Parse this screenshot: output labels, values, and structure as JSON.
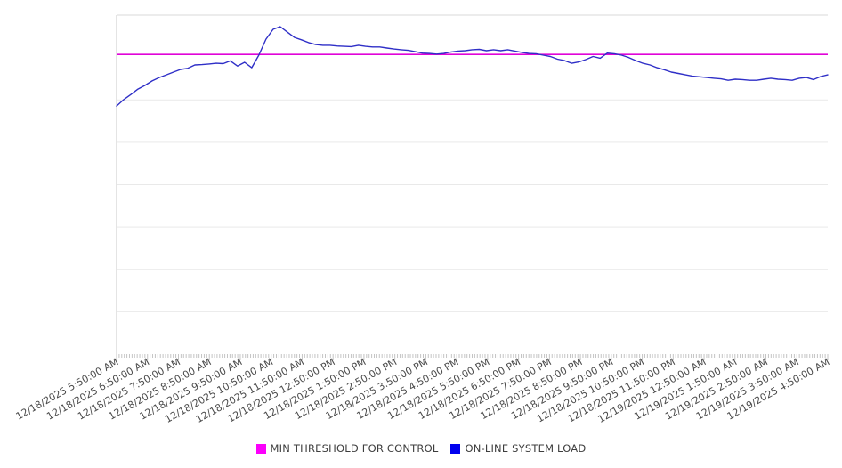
{
  "chart_data": {
    "type": "line",
    "title": "",
    "grid": "horizontal",
    "legend_position": "bottom",
    "y_axis_labels_visible": false,
    "ylim": [
      0,
      100
    ],
    "x_label_rotation_deg": -29,
    "x_labels": [
      "12/18/2025 5:50:00 AM",
      "12/18/2025 6:50:00 AM",
      "12/18/2025 7:50:00 AM",
      "12/18/2025 8:50:00 AM",
      "12/18/2025 9:50:00 AM",
      "12/18/2025 10:50:00 AM",
      "12/18/2025 11:50:00 AM",
      "12/18/2025 12:50:00 PM",
      "12/18/2025 1:50:00 PM",
      "12/18/2025 2:50:00 PM",
      "12/18/2025 3:50:00 PM",
      "12/18/2025 4:50:00 PM",
      "12/18/2025 5:50:00 PM",
      "12/18/2025 6:50:00 PM",
      "12/18/2025 7:50:00 PM",
      "12/18/2025 8:50:00 PM",
      "12/18/2025 9:50:00 PM",
      "12/18/2025 10:50:00 PM",
      "12/18/2025 11:50:00 PM",
      "12/19/2025 12:50:00 AM",
      "12/19/2025 1:50:00 AM",
      "12/19/2025 2:50:00 AM",
      "12/19/2025 3:50:00 AM",
      "12/19/2025 4:50:00 AM"
    ],
    "series": [
      {
        "name": "MIN THRESHOLD FOR CONTROL",
        "type": "threshold",
        "value": 88.4,
        "color": "#e004d8",
        "swatch_color": "#fb00fb"
      },
      {
        "name": "ON-LINE SYSTEM LOAD",
        "type": "line",
        "color": "#2f2fc7",
        "swatch_color": "#0101ef",
        "values": [
          73.2,
          75.1,
          76.6,
          78.2,
          79.3,
          80.6,
          81.6,
          82.4,
          83.2,
          84.0,
          84.3,
          85.3,
          85.4,
          85.6,
          85.8,
          85.7,
          86.5,
          85.0,
          86.1,
          84.5,
          88.2,
          92.9,
          95.8,
          96.6,
          95.0,
          93.4,
          92.7,
          91.9,
          91.3,
          91.1,
          91.1,
          90.9,
          90.8,
          90.7,
          91.1,
          90.8,
          90.6,
          90.6,
          90.3,
          90.0,
          89.8,
          89.6,
          89.2,
          88.8,
          88.7,
          88.5,
          88.7,
          89.1,
          89.4,
          89.5,
          89.8,
          89.9,
          89.5,
          89.8,
          89.5,
          89.8,
          89.4,
          89.0,
          88.7,
          88.6,
          88.2,
          87.8,
          87.0,
          86.6,
          85.8,
          86.2,
          86.9,
          87.8,
          87.3,
          88.8,
          88.6,
          88.2,
          87.5,
          86.6,
          85.8,
          85.3,
          84.5,
          83.9,
          83.2,
          82.8,
          82.4,
          82.0,
          81.8,
          81.6,
          81.4,
          81.2,
          80.8,
          81.1,
          81.0,
          80.8,
          80.8,
          81.1,
          81.4,
          81.1,
          81.0,
          80.8,
          81.4,
          81.6,
          81.0,
          81.9,
          82.4
        ]
      }
    ]
  }
}
